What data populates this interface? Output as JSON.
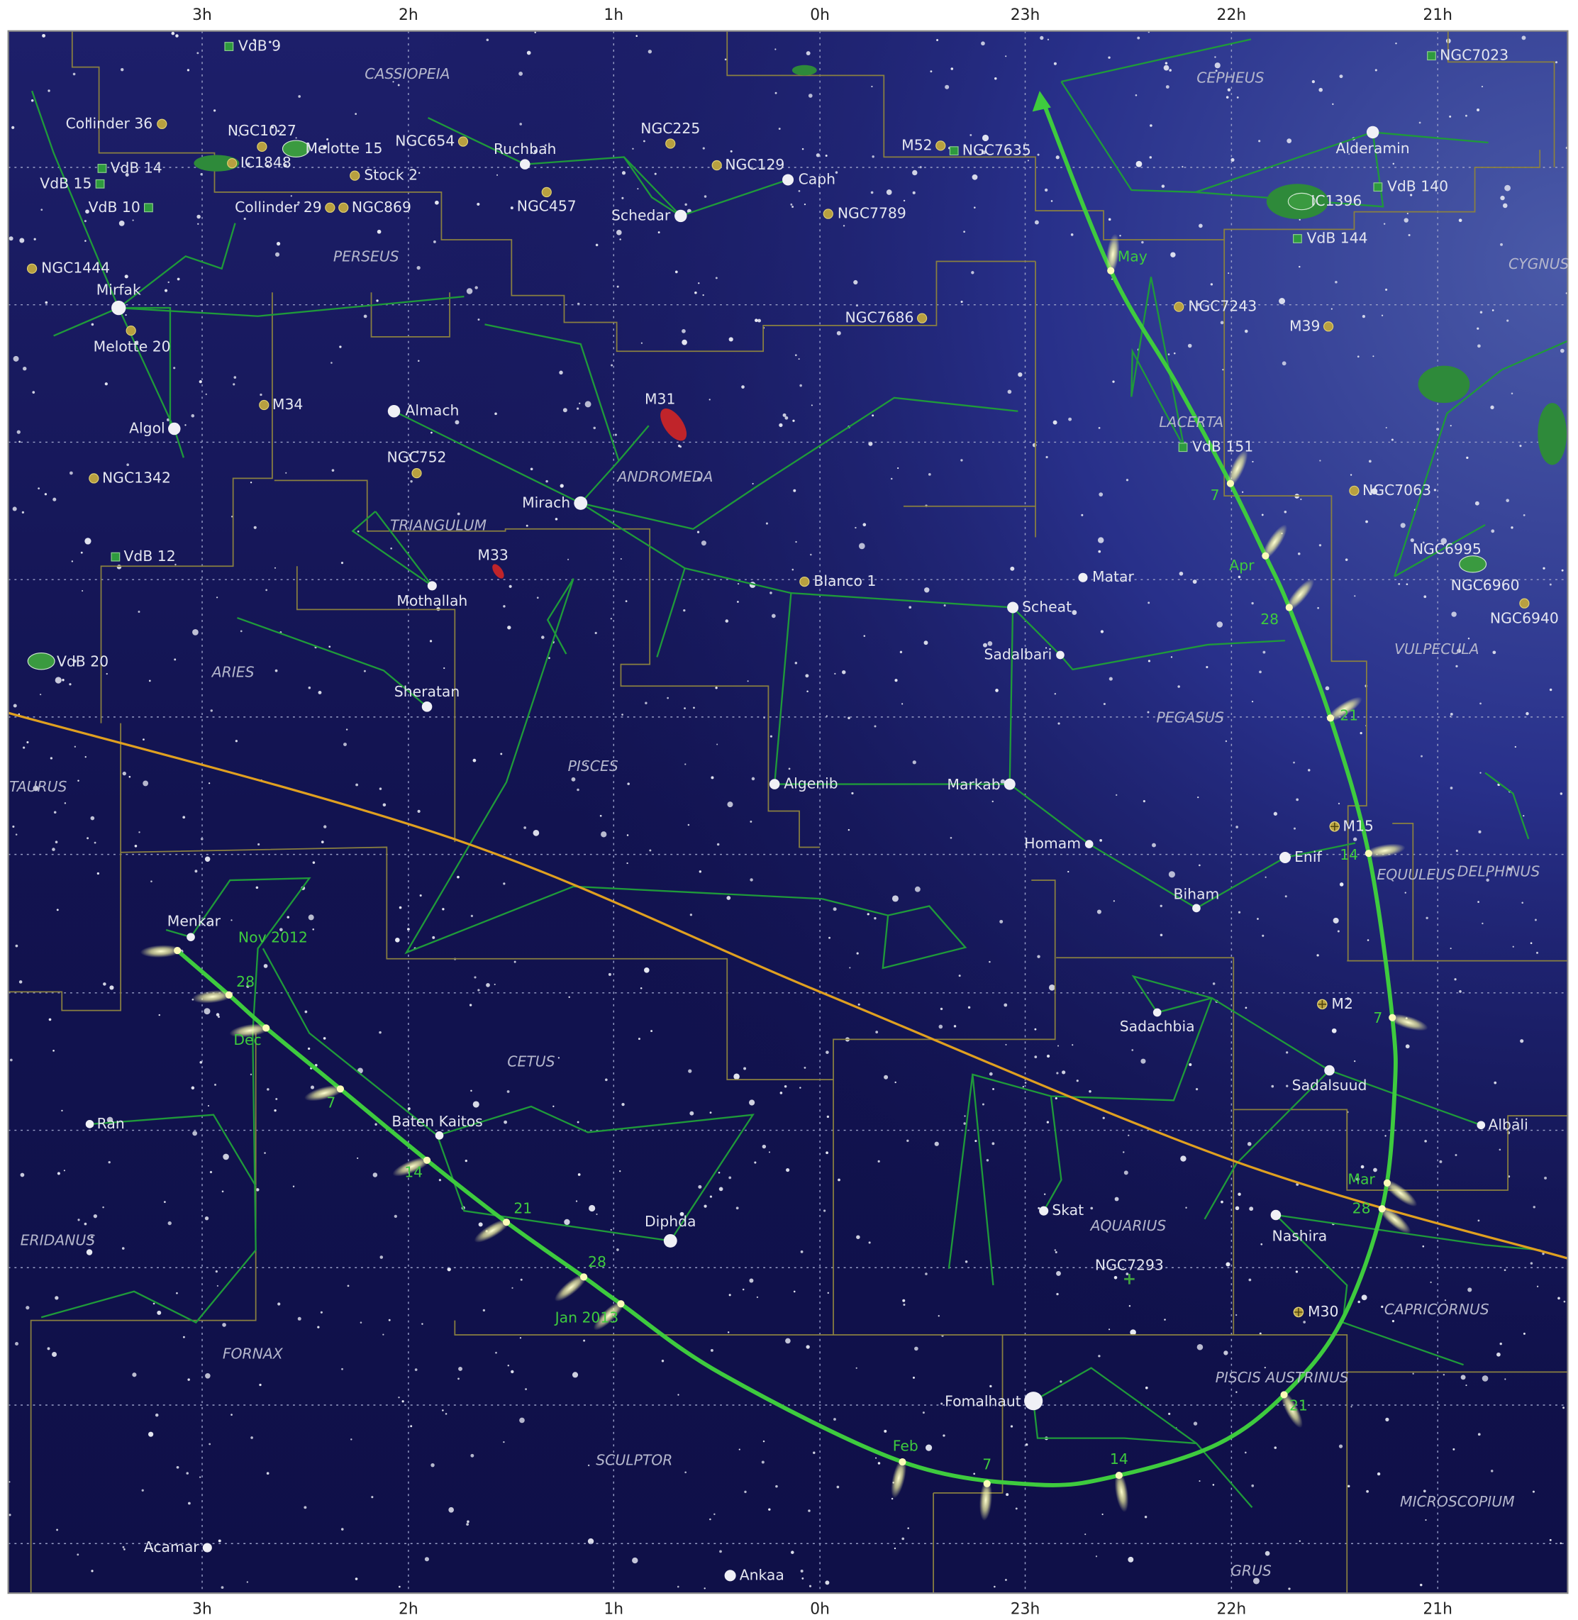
{
  "ra_labels": [
    "3h",
    "2h",
    "1h",
    "0h",
    "23h",
    "22h",
    "21h"
  ],
  "constellations": [
    "CASSIOPEIA",
    "CEPHEUS",
    "CYGNUS",
    "PERSEUS",
    "LACERTA",
    "ANDROMEDA",
    "TRIANGULUM",
    "VULPECULA",
    "ARIES",
    "PISCES",
    "PEGASUS",
    "TAURUS",
    "EQUULEUS",
    "DELPHINUS",
    "CETUS",
    "AQUARIUS",
    "ERIDANUS",
    "CAPRICORNUS",
    "FORNAX",
    "PISCIS AUSTRINUS",
    "SCULPTOR",
    "MICROSCOPIUM",
    "GRUS"
  ],
  "stars": [
    "Mirfak",
    "Algol",
    "Almach",
    "Mirach",
    "Ruchbah",
    "Schedar",
    "Caph",
    "Alderamin",
    "Scheat",
    "Sadalbari",
    "Matar",
    "Mothallah",
    "Sheratan",
    "Algenib",
    "Markab",
    "Homam",
    "Enif",
    "Biham",
    "Sadachbia",
    "Sadalsuud",
    "Albali",
    "Menkar",
    "Ran",
    "Baten Kaitos",
    "Diphda",
    "Skat",
    "Nashira",
    "Fomalhaut",
    "Acamar",
    "Ankaa"
  ],
  "deep_sky": [
    "VdB 9",
    "Collinder 36",
    "NGC1027",
    "Melotte 15",
    "IC1848",
    "VdB 14",
    "VdB 15",
    "VdB 10",
    "NGC654",
    "Stock 2",
    "Collinder 29",
    "NGC869",
    "NGC457",
    "NGC225",
    "NGC129",
    "M52",
    "NGC7635",
    "NGC7789",
    "NGC1444",
    "Melotte 20",
    "NGC7686",
    "M34",
    "M31",
    "NGC752",
    "NGC1342",
    "M33",
    "VdB 12",
    "VdB 20",
    "Blanco 1",
    "NGC7243",
    "M39",
    "VdB 140",
    "IC1396",
    "VdB 144",
    "NGC7023",
    "VdB 151",
    "NGC7063",
    "NGC6995",
    "NGC6960",
    "NGC6940",
    "M15",
    "M2",
    "M30",
    "NGC7293"
  ],
  "comet_dates": [
    "Nov 2012",
    "28",
    "Dec",
    "7",
    "14",
    "21",
    "28",
    "Jan 2013",
    "Feb",
    "7",
    "14",
    "21",
    "28",
    "Mar",
    "7",
    "14",
    "21",
    "28",
    "Apr",
    "7",
    "May"
  ]
}
